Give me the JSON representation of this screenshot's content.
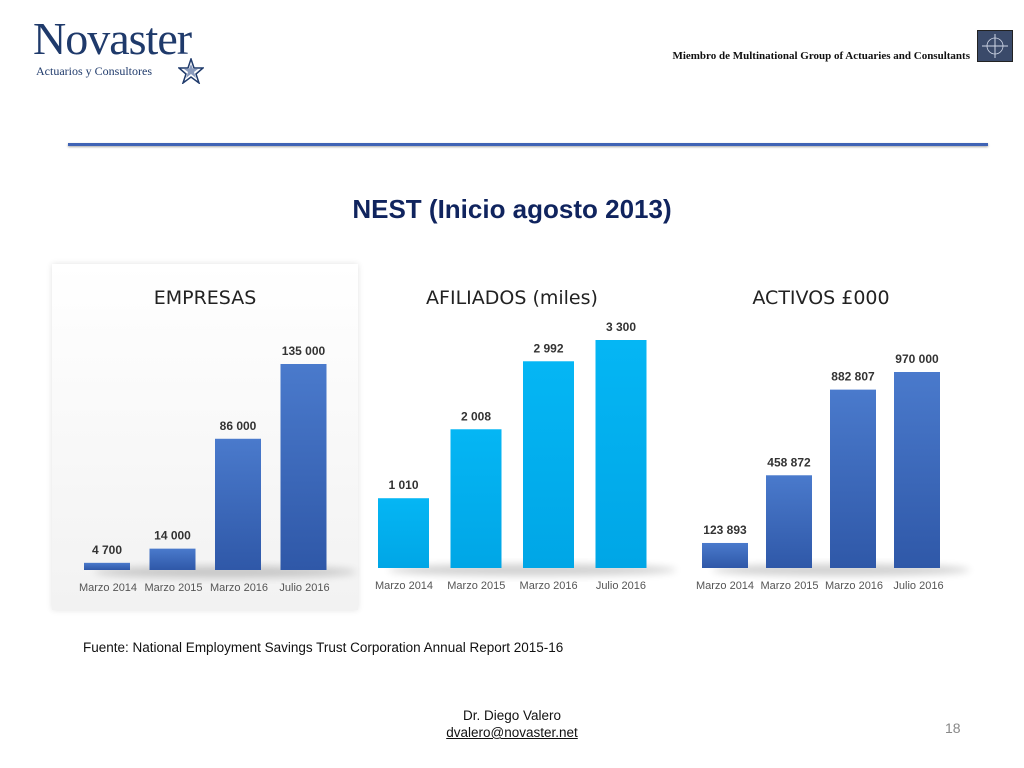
{
  "header": {
    "logo_name": "Novaster",
    "logo_subtitle": "Actuarios y Consultores",
    "member_text": "Miembro de Multinational Group of Actuaries and Consultants",
    "logo_color": "#1f3a6b",
    "rule_color": "#3f63b5"
  },
  "title": "NEST (Inicio agosto 2013)",
  "chart_data": [
    {
      "type": "bar",
      "title": "EMPRESAS",
      "categories": [
        "Marzo 2014",
        "Marzo 2015",
        "Marzo 2016",
        "Julio 2016"
      ],
      "values": [
        4700,
        14000,
        86000,
        135000
      ],
      "value_labels": [
        "4 700",
        "14 000",
        "86 000",
        "135 000"
      ],
      "ylim": [
        0,
        135000
      ],
      "color": "#3d6cc0"
    },
    {
      "type": "bar",
      "title": "AFILIADOS (miles)",
      "categories": [
        "Marzo 2014",
        "Marzo 2015",
        "Marzo 2016",
        "Julio 2016"
      ],
      "values": [
        1010,
        2008,
        2992,
        3300
      ],
      "value_labels": [
        "1 010",
        "2 008",
        "2 992",
        "3 300"
      ],
      "ylim": [
        0,
        3300
      ],
      "color": "#00b0f0"
    },
    {
      "type": "bar",
      "title": "ACTIVOS  £000",
      "categories": [
        "Marzo 2014",
        "Marzo 2015",
        "Marzo 2016",
        "Julio 2016"
      ],
      "values": [
        123893,
        458872,
        882807,
        970000
      ],
      "value_labels": [
        "123 893",
        "458 872",
        "882 807",
        "970 000"
      ],
      "ylim": [
        0,
        970000
      ],
      "color": "#3d6cc0"
    }
  ],
  "source": "Fuente: National Employment Savings Trust Corporation Annual Report 2015-16",
  "author": {
    "name": "Dr. Diego Valero",
    "email": "dvalero@novaster.net"
  },
  "page_number": "18"
}
